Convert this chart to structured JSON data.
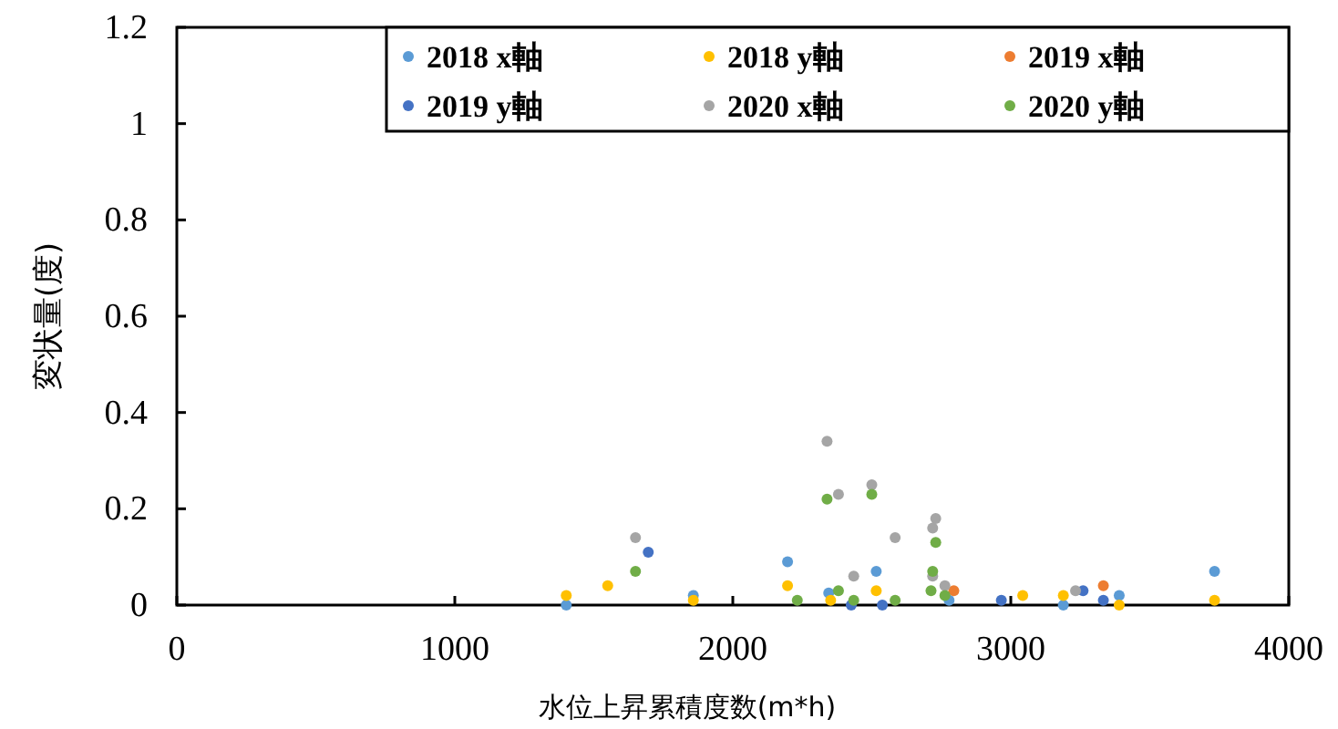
{
  "chart_data": {
    "type": "scatter",
    "xlabel": "水位上昇累積度数(m*h)",
    "ylabel": "変状量(度)",
    "xlim": [
      0,
      4000
    ],
    "xticks": [
      0,
      1000,
      2000,
      3000,
      4000
    ],
    "ylim": [
      0,
      1.2
    ],
    "yticks": [
      0,
      {
        "value": 0.2,
        "label": "0.2"
      },
      {
        "value": 0.4,
        "label": "0.4"
      },
      {
        "value": 0.6,
        "label": "0.6"
      },
      {
        "value": 0.8,
        "label": "0.8"
      },
      1,
      {
        "value": 1.2,
        "label": "1.2"
      }
    ],
    "grid": false,
    "legend": "top right",
    "marker": "circle",
    "series": [
      {
        "name": "2018 x軸",
        "color": "#5b9bd5",
        "x": [
          1401,
          1858,
          2197,
          2345,
          2516,
          2778,
          3189,
          3390,
          3733
        ],
        "values": [
          0,
          0.02,
          0.09,
          0.025,
          0.07,
          0.01,
          0,
          0.02,
          0.07
        ]
      },
      {
        "name": "2018 y軸",
        "color": "#ffc000",
        "x": [
          1401,
          1550,
          1858,
          2197,
          2352,
          2516,
          3043,
          3189,
          3390,
          3733
        ],
        "values": [
          0.02,
          0.04,
          0.01,
          0.04,
          0.01,
          0.03,
          0.02,
          0.02,
          0,
          0.01
        ]
      },
      {
        "name": "2019 x軸",
        "color": "#ed7d31",
        "x": [
          2795,
          3333
        ],
        "values": [
          0.03,
          0.04
        ]
      },
      {
        "name": "2019 y軸",
        "color": "#4472c4",
        "x": [
          1696,
          2426,
          2538,
          2966,
          3260,
          3333
        ],
        "values": [
          0.11,
          0,
          0,
          0.01,
          0.03,
          0.01
        ]
      },
      {
        "name": "2020 x軸",
        "color": "#a5a5a5",
        "x": [
          1650,
          2339,
          2380,
          2435,
          2500,
          2584,
          2730,
          2719,
          2719,
          2763,
          3233
        ],
        "values": [
          0.14,
          0.34,
          0.23,
          0.06,
          0.25,
          0.14,
          0.18,
          0.16,
          0.06,
          0.04,
          0.03
        ]
      },
      {
        "name": "2020 y軸",
        "color": "#70ad47",
        "x": [
          1650,
          2232,
          2339,
          2380,
          2435,
          2500,
          2584,
          2730,
          2719,
          2713,
          2763
        ],
        "values": [
          0.07,
          0.01,
          0.22,
          0.03,
          0.01,
          0.23,
          0.01,
          0.13,
          0.07,
          0.03,
          0.02
        ]
      }
    ]
  }
}
